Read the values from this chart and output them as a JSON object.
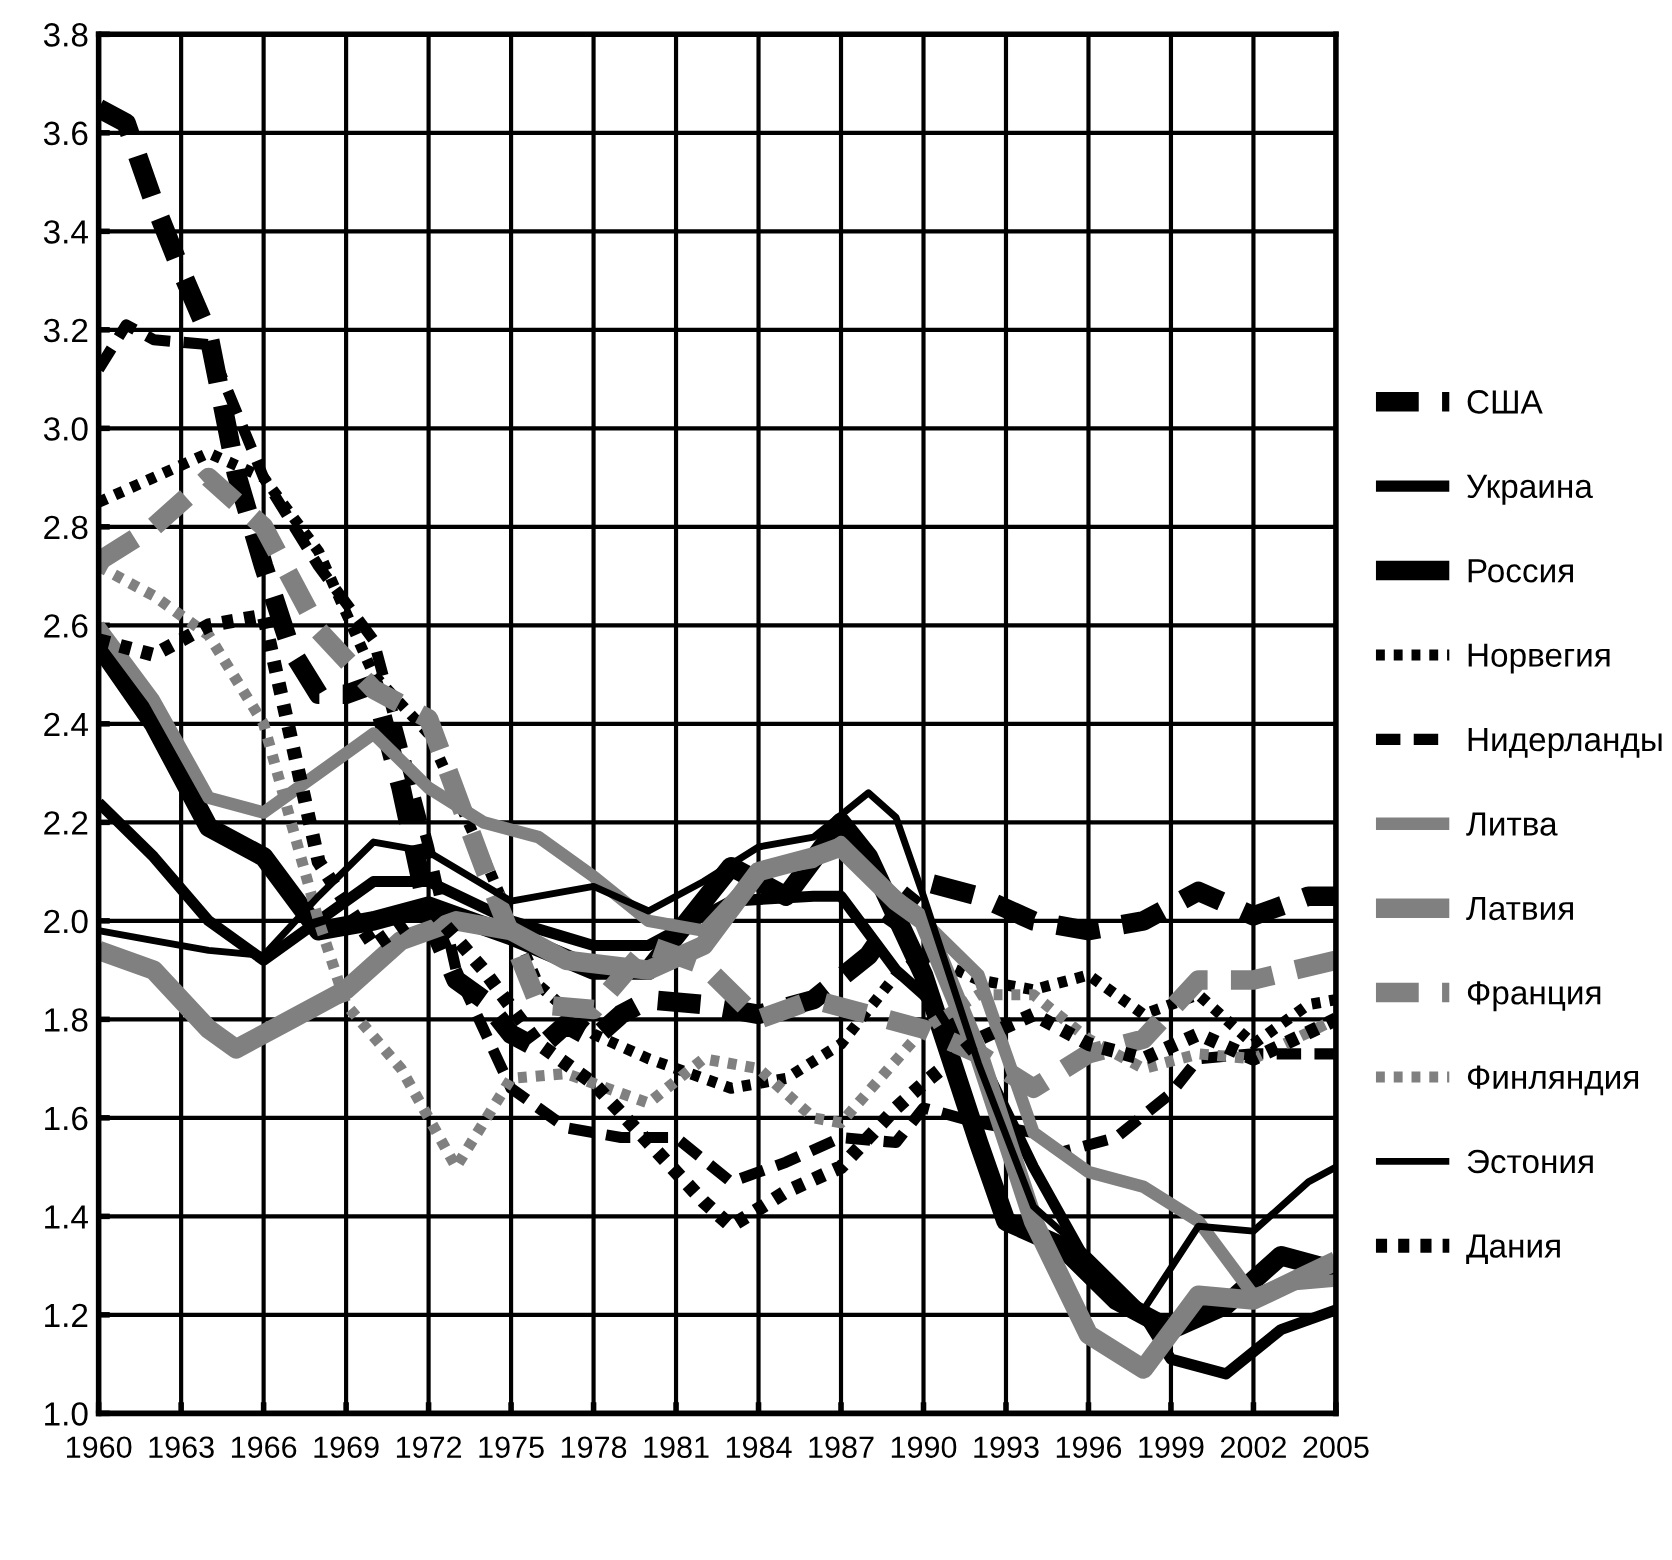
{
  "chart_data": {
    "type": "line",
    "xlim": [
      1960,
      2005
    ],
    "xticks": [
      1960,
      1963,
      1966,
      1969,
      1972,
      1975,
      1978,
      1981,
      1984,
      1987,
      1990,
      1993,
      1996,
      1999,
      2002,
      2005
    ],
    "ylim": [
      1.0,
      3.8
    ],
    "yticks": [
      {
        "value": 1.0,
        "label": "1.0"
      },
      {
        "value": 1.2,
        "label": "1.2"
      },
      {
        "value": 1.4,
        "label": "1.4"
      },
      {
        "value": 1.6,
        "label": "1.6"
      },
      {
        "value": 1.8,
        "label": "1.8"
      },
      {
        "value": 2.0,
        "label": "2.0"
      },
      {
        "value": 2.2,
        "label": "2.2"
      },
      {
        "value": 2.4,
        "label": "2.4"
      },
      {
        "value": 2.6,
        "label": "2.6"
      },
      {
        "value": 2.8,
        "label": "2.8"
      },
      {
        "value": 3.0,
        "label": "3.0"
      },
      {
        "value": 3.2,
        "label": "3.2"
      },
      {
        "value": 3.4,
        "label": "3.4"
      },
      {
        "value": 3.6,
        "label": "3.6"
      },
      {
        "value": 3.8,
        "label": "3.8"
      }
    ],
    "grid": true,
    "legend": "right",
    "marker": "none",
    "series": [
      {
        "name": "США",
        "color": "#000000",
        "line_style": "dashed",
        "x": [
          1960,
          1961,
          1962,
          1963,
          1964,
          1965,
          1966,
          1967,
          1968,
          1969,
          1970,
          1971,
          1972,
          1973,
          1974,
          1975,
          1976,
          1977,
          1978,
          1979,
          1980,
          1982,
          1984,
          1986,
          1988,
          1989,
          1990,
          1992,
          1994,
          1996,
          1998,
          2000,
          2002,
          2004,
          2005
        ],
        "values": [
          3.65,
          3.62,
          3.46,
          3.32,
          3.19,
          2.91,
          2.72,
          2.55,
          2.46,
          2.46,
          2.48,
          2.27,
          2.01,
          1.88,
          1.84,
          1.77,
          1.74,
          1.79,
          1.76,
          1.81,
          1.84,
          1.83,
          1.81,
          1.84,
          1.93,
          2.01,
          2.08,
          2.05,
          2.0,
          1.98,
          2.0,
          2.06,
          2.01,
          2.05,
          2.05
        ]
      },
      {
        "name": "Украина",
        "color": "#000000",
        "line_style": "solid",
        "x": [
          1960,
          1962,
          1964,
          1966,
          1968,
          1970,
          1972,
          1975,
          1978,
          1980,
          1983,
          1986,
          1987,
          1989,
          1990,
          1992,
          1994,
          1996,
          1998,
          1999,
          2001,
          2003,
          2005
        ],
        "values": [
          2.24,
          2.13,
          2.0,
          1.92,
          2.0,
          2.08,
          2.08,
          2.0,
          1.95,
          1.95,
          2.04,
          2.05,
          2.05,
          1.9,
          1.85,
          1.73,
          1.5,
          1.3,
          1.2,
          1.11,
          1.08,
          1.17,
          1.21
        ]
      },
      {
        "name": "Россия",
        "color": "#000000",
        "line_style": "solid",
        "x": [
          1960,
          1962,
          1964,
          1966,
          1968,
          1970,
          1972,
          1975,
          1978,
          1980,
          1983,
          1985,
          1987,
          1988,
          1990,
          1992,
          1993,
          1995,
          1997,
          1999,
          2001,
          2003,
          2005
        ],
        "values": [
          2.56,
          2.4,
          2.19,
          2.13,
          1.98,
          2.0,
          2.03,
          1.97,
          1.9,
          1.9,
          2.11,
          2.05,
          2.2,
          2.13,
          1.89,
          1.55,
          1.39,
          1.34,
          1.23,
          1.17,
          1.22,
          1.32,
          1.29
        ]
      },
      {
        "name": "Норвегия",
        "color": "#000000",
        "line_style": "dotted",
        "x": [
          1960,
          1962,
          1964,
          1966,
          1968,
          1970,
          1972,
          1974,
          1976,
          1978,
          1980,
          1983,
          1985,
          1987,
          1989,
          1990,
          1992,
          1994,
          1996,
          1998,
          2000,
          2002,
          2004,
          2005
        ],
        "values": [
          2.85,
          2.9,
          2.95,
          2.9,
          2.75,
          2.5,
          2.38,
          2.13,
          1.87,
          1.77,
          1.72,
          1.66,
          1.68,
          1.75,
          1.89,
          1.93,
          1.88,
          1.86,
          1.89,
          1.81,
          1.85,
          1.75,
          1.83,
          1.84
        ]
      },
      {
        "name": "Нидерланды",
        "color": "#000000",
        "line_style": "dashed",
        "x": [
          1960,
          1961,
          1962,
          1964,
          1966,
          1968,
          1970,
          1971,
          1972,
          1973,
          1975,
          1977,
          1979,
          1981,
          1983,
          1985,
          1987,
          1989,
          1990,
          1992,
          1994,
          1995,
          1997,
          1999,
          2000,
          2002,
          2005
        ],
        "values": [
          3.12,
          3.21,
          3.18,
          3.17,
          2.9,
          2.72,
          2.57,
          2.36,
          2.15,
          1.9,
          1.66,
          1.58,
          1.56,
          1.56,
          1.47,
          1.51,
          1.56,
          1.55,
          1.62,
          1.59,
          1.57,
          1.53,
          1.56,
          1.65,
          1.72,
          1.73,
          1.73
        ]
      },
      {
        "name": "Литва",
        "color": "#808080",
        "line_style": "solid",
        "x": [
          1960,
          1962,
          1964,
          1966,
          1968,
          1970,
          1972,
          1974,
          1976,
          1978,
          1980,
          1982,
          1984,
          1986,
          1987,
          1988,
          1990,
          1992,
          1994,
          1996,
          1998,
          2000,
          2002,
          2003,
          2005
        ],
        "values": [
          2.6,
          2.45,
          2.25,
          2.22,
          2.3,
          2.38,
          2.27,
          2.2,
          2.17,
          2.09,
          2.0,
          1.98,
          2.1,
          2.12,
          2.16,
          2.1,
          2.0,
          1.89,
          1.57,
          1.49,
          1.46,
          1.39,
          1.24,
          1.26,
          1.27
        ]
      },
      {
        "name": "Латвия",
        "color": "#808080",
        "line_style": "solid",
        "x": [
          1960,
          1962,
          1964,
          1965,
          1967,
          1969,
          1971,
          1973,
          1975,
          1977,
          1980,
          1982,
          1984,
          1986,
          1987,
          1989,
          1990,
          1992,
          1994,
          1996,
          1998,
          2000,
          2002,
          2005
        ],
        "values": [
          1.94,
          1.9,
          1.78,
          1.74,
          1.8,
          1.86,
          1.96,
          2.0,
          1.98,
          1.92,
          1.9,
          1.95,
          2.1,
          2.13,
          2.15,
          2.04,
          2.0,
          1.73,
          1.39,
          1.16,
          1.09,
          1.24,
          1.23,
          1.31
        ]
      },
      {
        "name": "Франция",
        "color": "#808080",
        "line_style": "dashed",
        "x": [
          1960,
          1962,
          1964,
          1966,
          1968,
          1970,
          1972,
          1974,
          1976,
          1978,
          1980,
          1982,
          1984,
          1986,
          1988,
          1990,
          1992,
          1994,
          1996,
          1998,
          2000,
          2002,
          2005
        ],
        "values": [
          2.73,
          2.8,
          2.9,
          2.8,
          2.59,
          2.47,
          2.41,
          2.11,
          1.83,
          1.82,
          1.95,
          1.91,
          1.8,
          1.84,
          1.81,
          1.78,
          1.73,
          1.66,
          1.73,
          1.76,
          1.88,
          1.88,
          1.92
        ]
      },
      {
        "name": "Финляндия",
        "color": "#808080",
        "line_style": "dotted",
        "x": [
          1960,
          1962,
          1964,
          1966,
          1968,
          1969,
          1971,
          1973,
          1975,
          1977,
          1980,
          1982,
          1984,
          1986,
          1987,
          1990,
          1992,
          1994,
          1996,
          1998,
          2000,
          2002,
          2005
        ],
        "values": [
          2.72,
          2.66,
          2.58,
          2.4,
          2.0,
          1.83,
          1.7,
          1.5,
          1.68,
          1.69,
          1.63,
          1.72,
          1.7,
          1.6,
          1.59,
          1.78,
          1.85,
          1.85,
          1.76,
          1.7,
          1.73,
          1.72,
          1.8
        ]
      },
      {
        "name": "Эстония",
        "color": "#000000",
        "line_style": "solid",
        "x": [
          1960,
          1962,
          1964,
          1966,
          1968,
          1970,
          1972,
          1975,
          1978,
          1980,
          1982,
          1984,
          1986,
          1988,
          1989,
          1990,
          1992,
          1994,
          1996,
          1998,
          2000,
          2002,
          2004,
          2005
        ],
        "values": [
          1.98,
          1.96,
          1.94,
          1.93,
          2.05,
          2.16,
          2.14,
          2.04,
          2.07,
          2.02,
          2.08,
          2.15,
          2.17,
          2.26,
          2.21,
          2.05,
          1.71,
          1.42,
          1.32,
          1.21,
          1.38,
          1.37,
          1.47,
          1.5
        ]
      },
      {
        "name": "Дания",
        "color": "#000000",
        "line_style": "dotted",
        "x": [
          1960,
          1962,
          1964,
          1966,
          1968,
          1970,
          1972,
          1974,
          1976,
          1978,
          1980,
          1982,
          1983,
          1985,
          1987,
          1989,
          1990,
          1992,
          1994,
          1996,
          1998,
          2000,
          2002,
          2005
        ],
        "values": [
          2.57,
          2.54,
          2.6,
          2.62,
          2.12,
          1.95,
          2.03,
          1.9,
          1.75,
          1.67,
          1.55,
          1.43,
          1.38,
          1.45,
          1.5,
          1.62,
          1.67,
          1.76,
          1.81,
          1.75,
          1.72,
          1.77,
          1.72,
          1.8
        ]
      }
    ]
  }
}
